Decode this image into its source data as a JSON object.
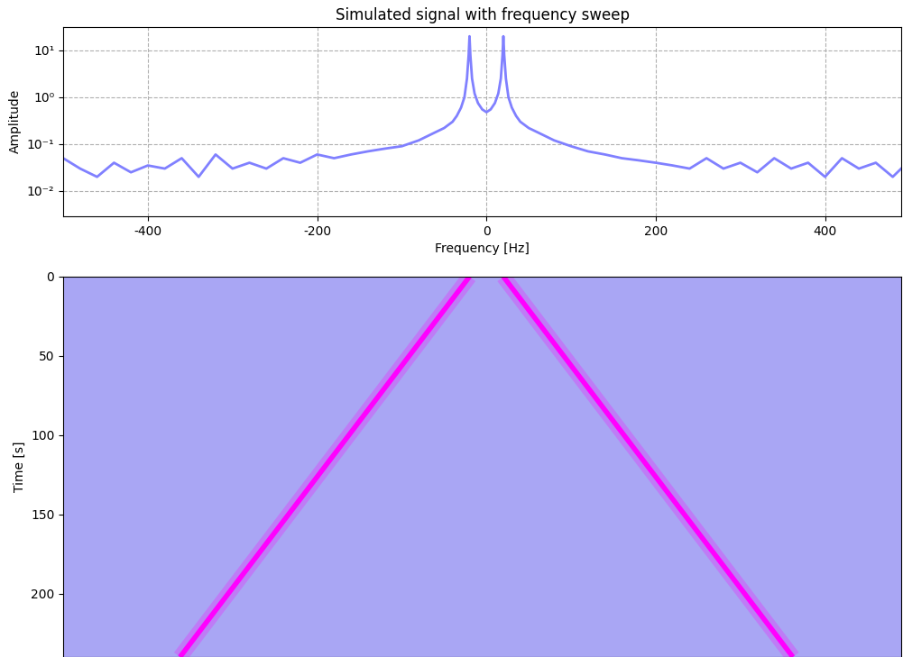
{
  "chart_data": [
    {
      "type": "line",
      "title": "Simulated signal with frequency sweep",
      "x_label": "Frequency [Hz]",
      "y_label": "Amplitude",
      "log": "y",
      "grid": true,
      "color": "#8080ff",
      "x": [
        -500,
        -480,
        -460,
        -440,
        -420,
        -400,
        -380,
        -360,
        -340,
        -320,
        -300,
        -280,
        -260,
        -240,
        -220,
        -200,
        -180,
        -160,
        -140,
        -120,
        -100,
        -80,
        -60,
        -50,
        -40,
        -35,
        -30,
        -26,
        -23,
        -21,
        -20,
        -19,
        -17,
        -14,
        -10,
        -5,
        0,
        5,
        10,
        14,
        17,
        19,
        20,
        21,
        23,
        26,
        30,
        35,
        40,
        50,
        60,
        80,
        100,
        120,
        140,
        160,
        180,
        200,
        220,
        240,
        260,
        280,
        300,
        320,
        340,
        360,
        380,
        400,
        420,
        440,
        460,
        480,
        490
      ],
      "values": [
        0.05,
        0.03,
        0.02,
        0.04,
        0.025,
        0.035,
        0.03,
        0.05,
        0.02,
        0.06,
        0.03,
        0.04,
        0.03,
        0.05,
        0.04,
        0.06,
        0.05,
        0.06,
        0.07,
        0.08,
        0.09,
        0.12,
        0.18,
        0.22,
        0.3,
        0.4,
        0.6,
        1.0,
        2.5,
        8,
        20,
        8,
        2.5,
        1.2,
        0.75,
        0.55,
        0.48,
        0.55,
        0.75,
        1.2,
        2.5,
        8,
        20,
        8,
        2.5,
        1.0,
        0.6,
        0.4,
        0.3,
        0.22,
        0.18,
        0.12,
        0.09,
        0.07,
        0.06,
        0.05,
        0.045,
        0.04,
        0.035,
        0.03,
        0.05,
        0.03,
        0.04,
        0.025,
        0.05,
        0.03,
        0.04,
        0.02,
        0.05,
        0.03,
        0.04,
        0.02,
        0.03
      ],
      "xlim": [
        -500,
        490
      ],
      "xticks": [
        -400,
        -200,
        0,
        200,
        400
      ],
      "ylim": [
        0.0029,
        31.6
      ],
      "yticks": [
        {
          "value": 0.01,
          "label": "10⁻²"
        },
        {
          "value": 0.1,
          "label": "10⁻¹"
        },
        {
          "value": 1,
          "label": "10⁰"
        },
        {
          "value": 10,
          "label": "10¹"
        }
      ]
    },
    {
      "type": "line",
      "y_label": "Time [s]",
      "tick_labels": "y",
      "series": [
        {
          "color": "#ff00ff",
          "x": [
            -20,
            -362
          ],
          "values": [
            0,
            240
          ]
        },
        {
          "color": "#ff00ff",
          "x": [
            20,
            362
          ],
          "values": [
            0,
            240
          ]
        }
      ],
      "xlim": [
        -500,
        490
      ],
      "ylim": [
        240,
        0
      ],
      "yticks": [
        0,
        50,
        100,
        150,
        200
      ]
    }
  ]
}
